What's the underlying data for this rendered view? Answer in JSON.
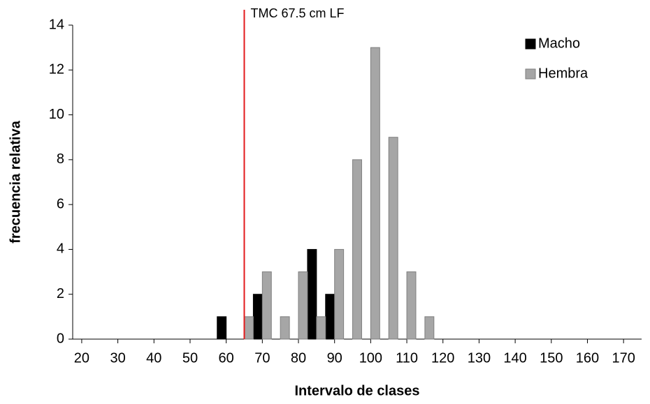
{
  "chart_data": {
    "type": "bar",
    "xlabel": "Intervalo de clases",
    "ylabel": "frecuencia relativa",
    "x": [
      20,
      25,
      30,
      35,
      40,
      45,
      50,
      55,
      60,
      65,
      70,
      75,
      80,
      85,
      90,
      95,
      100,
      105,
      110,
      115,
      120,
      125,
      130,
      135,
      140,
      145,
      150,
      155,
      160,
      165,
      170
    ],
    "series": [
      {
        "name": "Macho",
        "color": "#000000",
        "values": [
          0,
          0,
          0,
          0,
          0,
          0,
          0,
          0,
          1,
          0,
          2,
          0,
          0,
          4,
          2,
          0,
          0,
          0,
          0,
          0,
          0,
          0,
          0,
          0,
          0,
          0,
          0,
          0,
          0,
          0,
          0
        ]
      },
      {
        "name": "Hembra",
        "color": "#a6a6a6",
        "values": [
          0,
          0,
          0,
          0,
          0,
          0,
          0,
          0,
          0,
          1,
          3,
          1,
          3,
          1,
          4,
          8,
          13,
          9,
          3,
          1,
          0,
          0,
          0,
          0,
          0,
          0,
          0,
          0,
          0,
          0,
          0
        ]
      }
    ],
    "xlim": [
      17.5,
      175
    ],
    "xticks": [
      20,
      30,
      40,
      50,
      60,
      70,
      80,
      90,
      100,
      110,
      120,
      130,
      140,
      150,
      160,
      170
    ],
    "ylim": [
      0,
      14
    ],
    "yticks": [
      0,
      2,
      4,
      6,
      8,
      10,
      12,
      14
    ],
    "annotation": {
      "text": "TMC 67.5 cm LF",
      "x": 65,
      "color": "#e31a1c"
    },
    "legend": "upper right"
  }
}
